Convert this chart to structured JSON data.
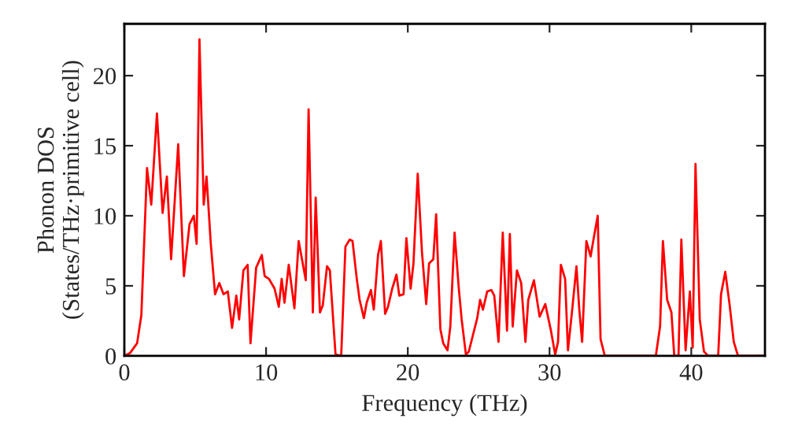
{
  "chart_data": {
    "type": "line",
    "xlabel": "Frequency (THz)",
    "ylabel": "Phonon DOS\n(States/THz·primitive cell)",
    "xlim": [
      0,
      45.2
    ],
    "ylim": [
      0,
      23.7
    ],
    "xticks": [
      0,
      10,
      20,
      30,
      40
    ],
    "yticks": [
      0,
      5,
      10,
      15,
      20
    ],
    "grid": false,
    "legend": false,
    "series": [
      {
        "color": "#ff0000",
        "x": [
          0,
          0.4,
          0.9,
          1.2,
          1.6,
          1.9,
          2.3,
          2.7,
          3.0,
          3.3,
          3.8,
          4.2,
          4.6,
          4.9,
          5.1,
          5.3,
          5.6,
          5.8,
          6.1,
          6.4,
          6.7,
          7.0,
          7.3,
          7.6,
          7.9,
          8.1,
          8.4,
          8.7,
          8.9,
          9.3,
          9.7,
          9.9,
          10.2,
          10.6,
          10.9,
          11.1,
          11.3,
          11.6,
          12.0,
          12.3,
          12.8,
          13.0,
          13.3,
          13.5,
          13.8,
          14.0,
          14.3,
          14.5,
          14.9,
          15.3,
          15.6,
          15.9,
          16.1,
          16.4,
          16.6,
          16.9,
          17.1,
          17.4,
          17.6,
          17.9,
          18.1,
          18.4,
          18.6,
          18.9,
          19.2,
          19.4,
          19.7,
          19.9,
          20.2,
          20.4,
          20.7,
          21.0,
          21.3,
          21.5,
          21.8,
          22.0,
          22.3,
          22.5,
          22.8,
          23.0,
          23.3,
          23.6,
          23.8,
          24.1,
          24.3,
          24.6,
          24.9,
          25.1,
          25.3,
          25.6,
          25.9,
          26.1,
          26.4,
          26.7,
          27.0,
          27.2,
          27.4,
          27.7,
          28.0,
          28.3,
          28.5,
          28.9,
          29.3,
          29.7,
          30.1,
          30.4,
          30.6,
          30.8,
          31.1,
          31.3,
          31.6,
          31.9,
          32.1,
          32.3,
          32.6,
          32.9,
          33.1,
          33.4,
          33.6,
          33.9,
          37.5,
          37.8,
          38.0,
          38.3,
          38.6,
          38.8,
          39.1,
          39.3,
          39.6,
          39.9,
          40.1,
          40.3,
          40.6,
          40.9,
          41.2,
          41.9,
          42.1,
          42.4,
          42.7,
          43.0,
          43.3,
          45.1
        ],
        "values": [
          0,
          0.2,
          0.9,
          2.9,
          13.4,
          10.8,
          17.3,
          10.2,
          12.8,
          6.9,
          15.1,
          5.7,
          9.4,
          10.0,
          8.0,
          22.6,
          10.8,
          12.8,
          8.0,
          4.4,
          5.2,
          4.4,
          4.6,
          2.0,
          4.3,
          2.6,
          6.1,
          6.5,
          0.9,
          6.3,
          7.2,
          5.7,
          5.5,
          4.8,
          3.5,
          5.5,
          3.8,
          6.5,
          3.4,
          8.2,
          5.4,
          17.6,
          3.1,
          11.3,
          3.1,
          3.6,
          6.4,
          6.1,
          0.1,
          0,
          7.8,
          8.3,
          8.2,
          5.5,
          4.0,
          2.7,
          3.8,
          4.7,
          3.3,
          7.2,
          8.2,
          3.0,
          3.5,
          4.8,
          5.8,
          4.3,
          4.4,
          8.4,
          4.8,
          6.6,
          13.0,
          7.4,
          3.7,
          6.6,
          6.9,
          10.1,
          1.9,
          0.9,
          0.4,
          2.1,
          8.8,
          4.8,
          2.6,
          0.1,
          0.3,
          1.5,
          2.7,
          4.0,
          3.3,
          4.6,
          4.7,
          4.3,
          1.0,
          8.8,
          1.8,
          8.7,
          2.1,
          6.1,
          5.2,
          1.0,
          4.0,
          5.4,
          2.8,
          3.7,
          1.8,
          0.1,
          1.0,
          6.5,
          5.5,
          0.4,
          3.3,
          6.4,
          3.3,
          1.0,
          8.2,
          7.1,
          8.3,
          10.0,
          1.2,
          0,
          0,
          2.1,
          8.2,
          4.0,
          3.1,
          0,
          0,
          8.3,
          0.4,
          4.6,
          0.6,
          13.7,
          2.6,
          0.3,
          0,
          0,
          4.4,
          6.0,
          3.7,
          1.0,
          0,
          0
        ]
      }
    ]
  }
}
